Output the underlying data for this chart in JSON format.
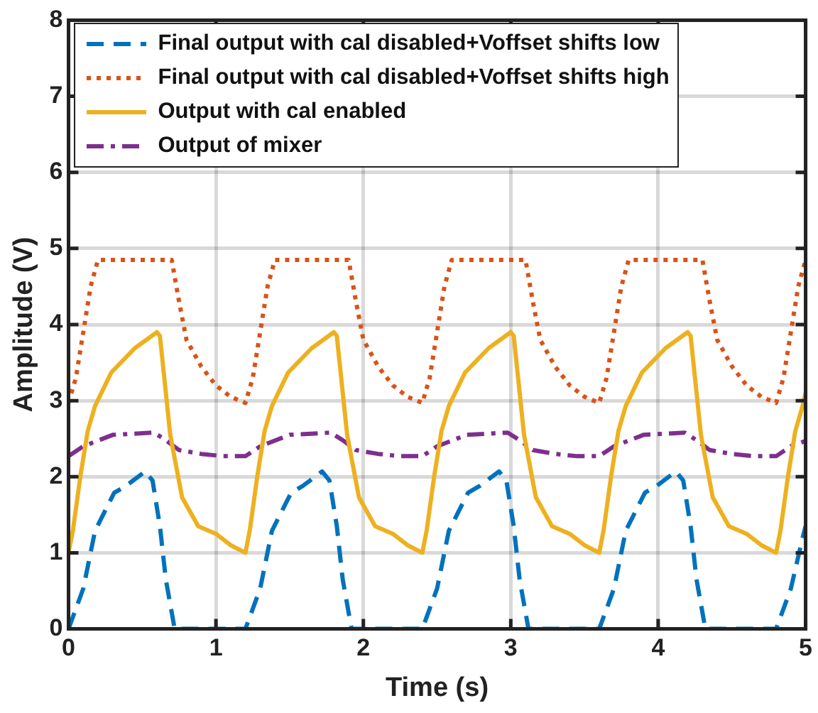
{
  "chart_data": {
    "type": "line",
    "xlabel": "Time (s)",
    "ylabel": "Amplitude (V)",
    "xlim": [
      0,
      5
    ],
    "xticks": [
      0,
      1,
      2,
      3,
      4,
      5
    ],
    "ylim": [
      0,
      8
    ],
    "yticks": [
      0,
      1,
      2,
      3,
      4,
      5,
      6,
      7,
      8
    ],
    "grid": true,
    "legend": "top left",
    "marker": "none",
    "series": [
      {
        "name": "Final output with cal disabled+Voffset shifts low",
        "color": "#0072bd",
        "line_style": "dashed",
        "x": [
          0,
          0.1,
          0.18,
          0.31,
          0.39,
          0.52,
          0.57,
          0.62,
          0.66,
          0.72,
          1.1,
          1.2,
          1.3,
          1.38,
          1.51,
          1.59,
          1.72,
          1.77,
          1.82,
          1.86,
          1.92,
          2.3,
          2.4,
          2.5,
          2.58,
          2.71,
          2.79,
          2.92,
          2.97,
          3.02,
          3.06,
          3.12,
          3.5,
          3.6,
          3.7,
          3.78,
          3.91,
          3.99,
          4.12,
          4.17,
          4.22,
          4.26,
          4.32,
          4.7,
          4.8,
          4.9,
          4.98,
          5.0
        ],
        "values": [
          0,
          0.53,
          1.29,
          1.79,
          1.88,
          2.07,
          1.95,
          1.35,
          0.65,
          0,
          0,
          0,
          0.53,
          1.29,
          1.79,
          1.88,
          2.07,
          1.95,
          1.35,
          0.65,
          0,
          0,
          0,
          0.53,
          1.29,
          1.79,
          1.88,
          2.07,
          1.95,
          1.35,
          0.65,
          0,
          0,
          0,
          0.53,
          1.29,
          1.79,
          1.88,
          2.07,
          1.95,
          1.35,
          0.65,
          0,
          0,
          0,
          0.53,
          1.2,
          1.35
        ]
      },
      {
        "name": "Final output with cal disabled+Voffset shifts high",
        "color": "#d95319",
        "line_style": "dotted",
        "x": [
          0,
          0.05,
          0.1,
          0.15,
          0.2,
          0.7,
          0.75,
          0.8,
          0.9,
          1.0,
          1.1,
          1.2,
          1.25,
          1.3,
          1.35,
          1.4,
          1.9,
          1.95,
          2.0,
          2.1,
          2.2,
          2.3,
          2.4,
          2.45,
          2.5,
          2.55,
          2.6,
          3.1,
          3.15,
          3.2,
          3.3,
          3.4,
          3.5,
          3.6,
          3.65,
          3.7,
          3.75,
          3.8,
          4.3,
          4.35,
          4.4,
          4.5,
          4.6,
          4.7,
          4.8,
          4.85,
          4.9,
          4.95,
          5.0
        ],
        "values": [
          2.97,
          3.3,
          3.9,
          4.5,
          4.85,
          4.85,
          4.3,
          3.8,
          3.45,
          3.2,
          3.05,
          2.97,
          3.3,
          3.9,
          4.5,
          4.85,
          4.85,
          4.3,
          3.8,
          3.45,
          3.2,
          3.05,
          2.97,
          3.3,
          3.9,
          4.5,
          4.85,
          4.85,
          4.3,
          3.8,
          3.45,
          3.2,
          3.05,
          2.97,
          3.3,
          3.9,
          4.5,
          4.85,
          4.85,
          4.3,
          3.8,
          3.45,
          3.2,
          3.05,
          2.97,
          3.3,
          3.9,
          4.5,
          4.85
        ]
      },
      {
        "name": "Output with cal enabled",
        "color": "#edb120",
        "line_style": "solid",
        "x": [
          0,
          0.03,
          0.08,
          0.13,
          0.18,
          0.29,
          0.45,
          0.6,
          0.62,
          0.69,
          0.77,
          0.88,
          1.0,
          1.1,
          1.2,
          1.23,
          1.28,
          1.33,
          1.38,
          1.49,
          1.65,
          1.8,
          1.82,
          1.89,
          1.97,
          2.08,
          2.2,
          2.3,
          2.4,
          2.43,
          2.48,
          2.53,
          2.58,
          2.69,
          2.85,
          3.0,
          3.02,
          3.09,
          3.17,
          3.28,
          3.4,
          3.5,
          3.6,
          3.63,
          3.68,
          3.73,
          3.78,
          3.89,
          4.05,
          4.2,
          4.22,
          4.29,
          4.37,
          4.48,
          4.6,
          4.7,
          4.8,
          4.83,
          4.88,
          4.93,
          4.98,
          5.0
        ],
        "values": [
          1.0,
          1.3,
          2.0,
          2.6,
          2.93,
          3.37,
          3.69,
          3.9,
          3.85,
          2.55,
          1.73,
          1.35,
          1.25,
          1.1,
          1.0,
          1.3,
          2.0,
          2.6,
          2.93,
          3.37,
          3.69,
          3.9,
          3.85,
          2.55,
          1.73,
          1.35,
          1.25,
          1.1,
          1.0,
          1.3,
          2.0,
          2.6,
          2.93,
          3.37,
          3.69,
          3.9,
          3.85,
          2.55,
          1.73,
          1.35,
          1.25,
          1.1,
          1.0,
          1.3,
          2.0,
          2.6,
          2.93,
          3.37,
          3.69,
          3.9,
          3.85,
          2.55,
          1.73,
          1.35,
          1.25,
          1.1,
          1.0,
          1.3,
          2.0,
          2.6,
          2.93,
          3.1
        ]
      },
      {
        "name": "Output of mixer",
        "color": "#7e2f8e",
        "line_style": "dashdot",
        "x": [
          0,
          0.1,
          0.3,
          0.58,
          0.66,
          0.75,
          0.9,
          1.05,
          1.2,
          1.3,
          1.5,
          1.78,
          1.86,
          1.95,
          2.1,
          2.25,
          2.4,
          2.5,
          2.7,
          2.98,
          3.06,
          3.15,
          3.3,
          3.45,
          3.6,
          3.7,
          3.9,
          4.18,
          4.26,
          4.35,
          4.5,
          4.65,
          4.8,
          4.9,
          5.0
        ],
        "values": [
          2.27,
          2.4,
          2.55,
          2.58,
          2.48,
          2.35,
          2.3,
          2.27,
          2.27,
          2.4,
          2.55,
          2.58,
          2.48,
          2.35,
          2.3,
          2.27,
          2.27,
          2.4,
          2.55,
          2.58,
          2.48,
          2.35,
          2.3,
          2.27,
          2.27,
          2.4,
          2.55,
          2.58,
          2.48,
          2.35,
          2.3,
          2.27,
          2.27,
          2.4,
          2.47
        ]
      }
    ]
  }
}
